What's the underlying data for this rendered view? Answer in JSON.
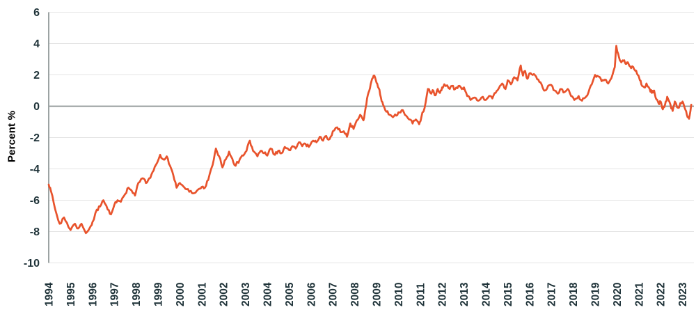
{
  "chart_data": {
    "type": "line",
    "title": "",
    "ylabel": "Percent %",
    "xlabel": "",
    "legend": "none",
    "grid": "horizontal",
    "x_tick_labels": [
      "1994",
      "1995",
      "1996",
      "1997",
      "1998",
      "1999",
      "2000",
      "2001",
      "2002",
      "2003",
      "2004",
      "2005",
      "2006",
      "2007",
      "2008",
      "2009",
      "2010",
      "2011",
      "2012",
      "2013",
      "2014",
      "2015",
      "2016",
      "2017",
      "2018",
      "2019",
      "2020",
      "2021",
      "2022",
      "2023"
    ],
    "y_ticks": [
      6,
      4,
      2,
      0,
      -2,
      -4,
      -6,
      -8,
      -10
    ],
    "ylim": [
      -10,
      6
    ],
    "xlim": [
      1994,
      2023.5
    ],
    "line_color": "#E8532C",
    "label_color": "#1E3238",
    "grid_color": "#E4E4E4",
    "zero_line_color": "#8A9090",
    "axis_color": "#9CA3A3",
    "noise_amplitude": 0.11,
    "series": [
      {
        "name": "Percent %",
        "x": [
          1994.0,
          1994.1,
          1994.3,
          1994.5,
          1994.7,
          1994.9,
          1995.0,
          1995.2,
          1995.35,
          1995.5,
          1995.7,
          1995.9,
          1996.0,
          1996.2,
          1996.35,
          1996.5,
          1996.7,
          1996.85,
          1997.0,
          1997.15,
          1997.3,
          1997.5,
          1997.65,
          1997.8,
          1997.95,
          1998.1,
          1998.3,
          1998.45,
          1998.6,
          1998.75,
          1998.9,
          1999.1,
          1999.25,
          1999.4,
          1999.55,
          1999.7,
          1999.85,
          2000.0,
          2000.15,
          2000.3,
          2000.5,
          2000.65,
          2000.85,
          2001.0,
          2001.15,
          2001.3,
          2001.5,
          2001.65,
          2001.8,
          2001.95,
          2002.1,
          2002.25,
          2002.4,
          2002.55,
          2002.75,
          2002.9,
          2003.05,
          2003.2,
          2003.35,
          2003.55,
          2003.7,
          2003.85,
          2004.0,
          2004.15,
          2004.35,
          2004.5,
          2004.65,
          2004.8,
          2005.0,
          2005.15,
          2005.3,
          2005.45,
          2005.6,
          2005.75,
          2005.9,
          2006.1,
          2006.25,
          2006.4,
          2006.55,
          2006.7,
          2006.85,
          2007.0,
          2007.2,
          2007.35,
          2007.5,
          2007.65,
          2007.8,
          2007.95,
          2008.1,
          2008.25,
          2008.4,
          2008.5,
          2008.6,
          2008.7,
          2008.8,
          2008.9,
          2009.0,
          2009.1,
          2009.2,
          2009.3,
          2009.45,
          2009.6,
          2009.75,
          2009.9,
          2010.05,
          2010.2,
          2010.35,
          2010.5,
          2010.65,
          2010.8,
          2010.95,
          2011.05,
          2011.2,
          2011.35,
          2011.5,
          2011.6,
          2011.7,
          2011.8,
          2011.9,
          2012.0,
          2012.1,
          2012.3,
          2012.45,
          2012.6,
          2012.75,
          2012.9,
          2013.0,
          2013.15,
          2013.3,
          2013.5,
          2013.65,
          2013.8,
          2014.0,
          2014.15,
          2014.3,
          2014.45,
          2014.6,
          2014.75,
          2014.9,
          2015.0,
          2015.15,
          2015.3,
          2015.45,
          2015.6,
          2015.7,
          2015.8,
          2015.9,
          2016.0,
          2016.15,
          2016.3,
          2016.45,
          2016.6,
          2016.7,
          2016.85,
          2017.0,
          2017.15,
          2017.3,
          2017.45,
          2017.6,
          2017.75,
          2017.9,
          2018.05,
          2018.25,
          2018.4,
          2018.55,
          2018.7,
          2018.85,
          2019.0,
          2019.15,
          2019.3,
          2019.45,
          2019.6,
          2019.75,
          2019.9,
          2019.97,
          2020.1,
          2020.2,
          2020.3,
          2020.4,
          2020.5,
          2020.6,
          2020.75,
          2020.85,
          2020.95,
          2021.05,
          2021.15,
          2021.25,
          2021.35,
          2021.5,
          2021.6,
          2021.7,
          2021.8,
          2021.9,
          2022.0,
          2022.1,
          2022.2,
          2022.3,
          2022.45,
          2022.55,
          2022.65,
          2022.8,
          2022.9,
          2023.0,
          2023.1,
          2023.2,
          2023.3,
          2023.4
        ],
        "values": [
          -5.0,
          -5.4,
          -6.6,
          -7.5,
          -7.1,
          -7.7,
          -7.9,
          -7.5,
          -7.8,
          -7.5,
          -8.1,
          -7.7,
          -7.4,
          -6.6,
          -6.4,
          -6.0,
          -6.6,
          -6.9,
          -6.3,
          -6.0,
          -6.1,
          -5.6,
          -5.2,
          -5.4,
          -5.7,
          -4.9,
          -4.6,
          -4.9,
          -4.6,
          -4.2,
          -3.75,
          -3.1,
          -3.4,
          -3.2,
          -3.8,
          -4.4,
          -5.2,
          -4.9,
          -5.1,
          -5.3,
          -5.4,
          -5.55,
          -5.3,
          -5.15,
          -5.2,
          -4.7,
          -3.75,
          -2.7,
          -3.2,
          -3.9,
          -3.4,
          -2.9,
          -3.35,
          -3.8,
          -3.35,
          -3.15,
          -2.85,
          -2.2,
          -2.85,
          -3.2,
          -2.85,
          -3.0,
          -3.15,
          -2.7,
          -3.1,
          -2.85,
          -3.0,
          -2.6,
          -2.8,
          -2.55,
          -2.7,
          -2.3,
          -2.55,
          -2.4,
          -2.6,
          -2.2,
          -2.3,
          -1.95,
          -2.2,
          -1.9,
          -2.1,
          -1.6,
          -1.35,
          -1.65,
          -1.6,
          -1.95,
          -1.1,
          -1.45,
          -0.9,
          -0.55,
          -0.9,
          -0.1,
          0.7,
          1.15,
          1.75,
          1.95,
          1.5,
          1.15,
          0.55,
          0.1,
          -0.35,
          -0.55,
          -0.7,
          -0.6,
          -0.4,
          -0.25,
          -0.6,
          -0.85,
          -1.1,
          -0.85,
          -1.15,
          -0.7,
          -0.1,
          1.1,
          0.8,
          1.0,
          0.7,
          1.1,
          0.85,
          1.2,
          1.4,
          1.15,
          1.3,
          1.1,
          1.3,
          1.1,
          1.2,
          0.65,
          0.4,
          0.55,
          0.35,
          0.55,
          0.4,
          0.65,
          0.5,
          0.85,
          1.15,
          1.45,
          1.1,
          1.65,
          1.4,
          1.85,
          1.65,
          2.6,
          1.95,
          2.25,
          1.75,
          2.1,
          2.0,
          1.9,
          1.55,
          1.2,
          1.0,
          1.3,
          1.35,
          1.0,
          0.8,
          1.1,
          0.9,
          1.1,
          0.65,
          0.4,
          0.65,
          0.35,
          0.55,
          0.9,
          1.4,
          2.0,
          1.9,
          1.6,
          1.7,
          1.45,
          1.8,
          2.5,
          3.85,
          3.1,
          2.8,
          2.9,
          2.7,
          2.8,
          2.55,
          2.5,
          2.25,
          2.0,
          1.65,
          1.3,
          1.2,
          1.45,
          1.1,
          0.85,
          1.0,
          0.45,
          0.2,
          0.3,
          -0.2,
          0.1,
          0.6,
          0.1,
          -0.3,
          0.3,
          -0.1,
          0.2,
          0.3,
          -0.1,
          -0.55,
          -0.8,
          0.1
        ]
      }
    ]
  }
}
